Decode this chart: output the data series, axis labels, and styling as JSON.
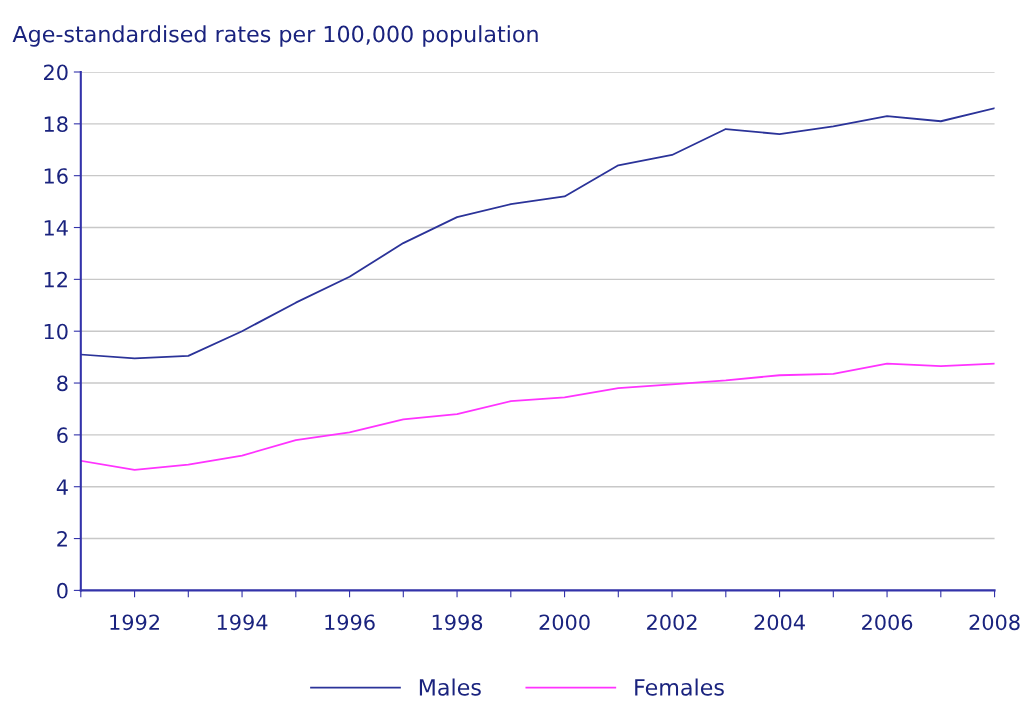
{
  "chart_data": {
    "type": "line",
    "title": "Age-standardised rates per 100,000 population",
    "x": [
      1991,
      1992,
      1993,
      1994,
      1995,
      1996,
      1997,
      1998,
      1999,
      2000,
      2001,
      2002,
      2003,
      2004,
      2005,
      2006,
      2007,
      2008
    ],
    "series": [
      {
        "name": "Males",
        "color": "#2b3399",
        "values": [
          9.1,
          8.95,
          9.05,
          10.0,
          11.1,
          12.1,
          13.4,
          14.4,
          14.9,
          15.2,
          16.4,
          16.8,
          17.8,
          17.6,
          17.9,
          18.3,
          18.1,
          18.6
        ]
      },
      {
        "name": "Females",
        "color": "#ff33ff",
        "values": [
          5.0,
          4.65,
          4.85,
          5.2,
          5.8,
          6.1,
          6.6,
          6.8,
          7.3,
          7.45,
          7.8,
          7.95,
          8.1,
          8.3,
          8.35,
          8.75,
          8.65,
          8.75
        ]
      }
    ],
    "xlim": [
      1991,
      2008
    ],
    "xticks": [
      {
        "value": 1991,
        "label": null
      },
      1992,
      {
        "value": 1993,
        "label": null
      },
      1994,
      {
        "value": 1995,
        "label": null
      },
      1996,
      {
        "value": 1997,
        "label": null
      },
      1998,
      {
        "value": 1999,
        "label": null
      },
      2000,
      {
        "value": 2001,
        "label": null
      },
      2002,
      {
        "value": 2003,
        "label": null
      },
      2004,
      {
        "value": 2005,
        "label": null
      },
      2006,
      {
        "value": 2007,
        "label": null
      },
      2008
    ],
    "ylim": [
      0,
      20
    ],
    "yticks": [
      0,
      2,
      4,
      6,
      8,
      10,
      12,
      14,
      16,
      18,
      20
    ],
    "grid": "y",
    "legend": "bottom",
    "marker": "none",
    "line_style": "solid"
  }
}
